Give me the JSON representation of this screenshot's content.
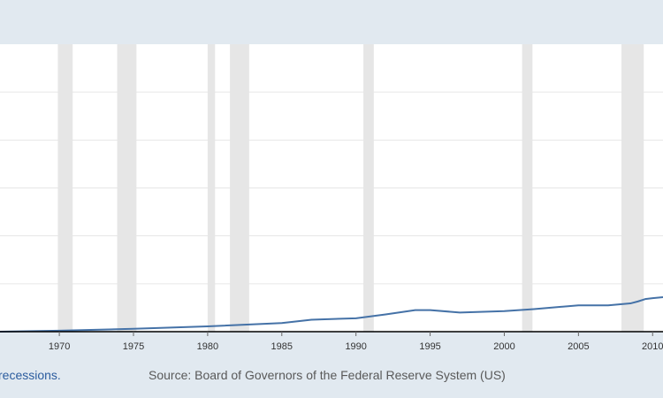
{
  "chart_data": {
    "type": "line",
    "title": "",
    "xlabel": "",
    "ylabel": "",
    "xlim": [
      1966.0,
      2010.7
    ],
    "ylim": [
      0,
      6
    ],
    "grid": true,
    "legend": "none",
    "x_ticks": [
      "1970",
      "1975",
      "1980",
      "1985",
      "1990",
      "1995",
      "2000",
      "2005",
      "2010"
    ],
    "recessions": [
      [
        1969.9,
        1970.9
      ],
      [
        1973.9,
        1975.2
      ],
      [
        1980.0,
        1980.5
      ],
      [
        1981.5,
        1982.8
      ],
      [
        1990.5,
        1991.2
      ],
      [
        2001.2,
        2001.9
      ],
      [
        2007.9,
        2009.4
      ]
    ],
    "series": [
      {
        "color": "#4572a7",
        "x": [
          1966,
          1970,
          1975,
          1980,
          1985,
          1987,
          1990,
          1992,
          1994,
          1995,
          1997,
          2000,
          2002,
          2005,
          2007,
          2008.5,
          2009,
          2009.5,
          2010,
          2010.7
        ],
        "y": [
          0.0,
          0.02,
          0.06,
          0.11,
          0.18,
          0.25,
          0.28,
          0.36,
          0.45,
          0.45,
          0.4,
          0.43,
          0.47,
          0.55,
          0.55,
          0.59,
          0.63,
          0.68,
          0.7,
          0.72
        ]
      }
    ]
  },
  "footer": {
    "recessions_link": "recessions.",
    "source": "Source: Board of Governors of the Federal Reserve System (US)"
  },
  "colors": {
    "background": "#e1e9f0",
    "plot_background": "#ffffff",
    "recession_band": "#e6e6e6",
    "gridline": "#e6e6e6",
    "axis": "#000000"
  }
}
